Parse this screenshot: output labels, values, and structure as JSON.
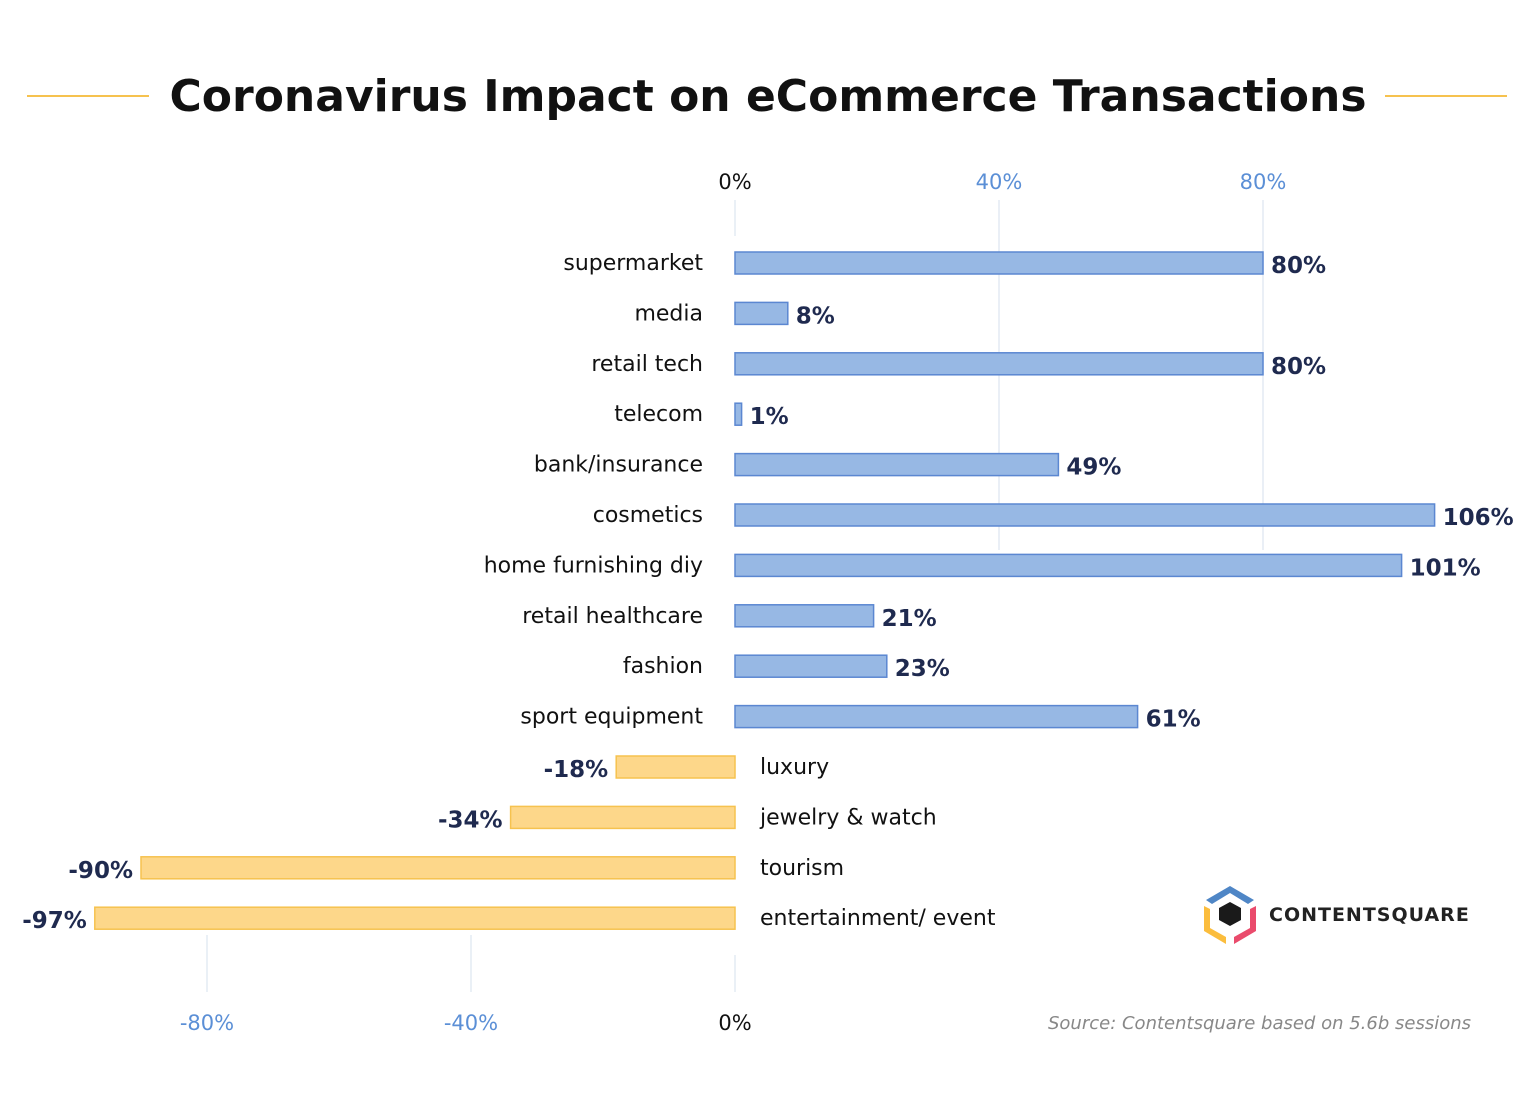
{
  "chart_data": {
    "type": "bar",
    "orientation": "horizontal",
    "title": "Coronavirus Impact on eCommerce Transactions",
    "categories": [
      "supermarket",
      "media",
      "retail tech",
      "telecom",
      "bank/insurance",
      "cosmetics",
      "home furnishing diy",
      "retail healthcare",
      "fashion",
      "sport equipment",
      "luxury",
      "jewelry & watch",
      "tourism",
      "entertainment/ event"
    ],
    "values": [
      80,
      8,
      80,
      1,
      49,
      106,
      101,
      21,
      23,
      61,
      -18,
      -34,
      -90,
      -97
    ],
    "value_labels": [
      "80%",
      "8%",
      "80%",
      "1%",
      "49%",
      "106%",
      "101%",
      "21%",
      "23%",
      "61%",
      "-18%",
      "-34%",
      "-90%",
      "-97%"
    ],
    "top_axis": {
      "ticks": [
        0,
        40,
        80
      ],
      "tick_labels": [
        "0%",
        "40%",
        "80%"
      ]
    },
    "bottom_axis": {
      "ticks": [
        -80,
        -40,
        0
      ],
      "tick_labels": [
        "-80%",
        "-40%",
        "0%"
      ]
    },
    "xlim": [
      -100,
      110
    ],
    "colors": {
      "positive_fill": "#97b8e4",
      "positive_stroke": "#5b87d1",
      "negative_fill": "#fdd78a",
      "negative_stroke": "#f6c24f",
      "accent_line": "#f6c24f"
    },
    "grid": true,
    "source": "Source: Contentsquare based on 5.6b sessions",
    "brand": "CONTENTSQUARE"
  }
}
